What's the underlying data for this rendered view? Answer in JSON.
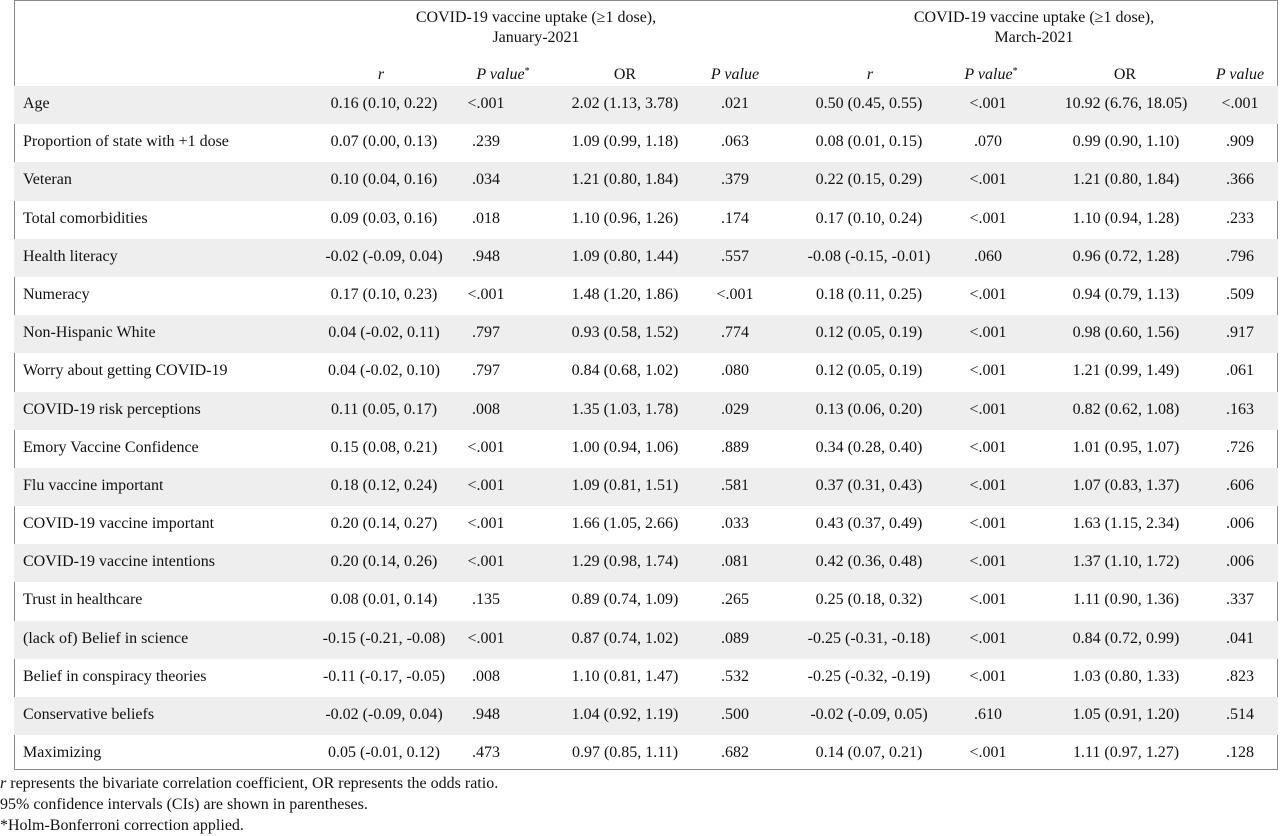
{
  "headers": {
    "group1_line1": "COVID-19 vaccine uptake (≥1 dose),",
    "group1_line2": "January-2021",
    "group2_line1": "COVID-19 vaccine uptake (≥1 dose),",
    "group2_line2": "March-2021",
    "r": "r",
    "p_value": "P value",
    "or": "OR",
    "asterisk": "*"
  },
  "rows": [
    {
      "label": "Age",
      "jan_r": "0.16 (0.10, 0.22)",
      "jan_p": "<.001",
      "jan_or": "2.02 (1.13, 3.78)",
      "jan_orp": ".021",
      "mar_r": "0.50 (0.45, 0.55)",
      "mar_p": "<.001",
      "mar_or": "10.92 (6.76, 18.05)",
      "mar_orp": "<.001"
    },
    {
      "label": "Proportion of state with +1 dose",
      "jan_r": "0.07 (0.00, 0.13)",
      "jan_p": ".239",
      "jan_or": "1.09 (0.99, 1.18)",
      "jan_orp": ".063",
      "mar_r": "0.08 (0.01, 0.15)",
      "mar_p": ".070",
      "mar_or": "0.99 (0.90, 1.10)",
      "mar_orp": ".909"
    },
    {
      "label": "Veteran",
      "jan_r": "0.10 (0.04, 0.16)",
      "jan_p": ".034",
      "jan_or": "1.21 (0.80, 1.84)",
      "jan_orp": ".379",
      "mar_r": "0.22 (0.15, 0.29)",
      "mar_p": "<.001",
      "mar_or": "1.21 (0.80, 1.84)",
      "mar_orp": ".366"
    },
    {
      "label": "Total comorbidities",
      "jan_r": "0.09 (0.03, 0.16)",
      "jan_p": ".018",
      "jan_or": "1.10 (0.96, 1.26)",
      "jan_orp": ".174",
      "mar_r": "0.17 (0.10, 0.24)",
      "mar_p": "<.001",
      "mar_or": "1.10 (0.94, 1.28)",
      "mar_orp": ".233"
    },
    {
      "label": "Health literacy",
      "jan_r": "-0.02 (-0.09, 0.04)",
      "jan_p": ".948",
      "jan_or": "1.09 (0.80, 1.44)",
      "jan_orp": ".557",
      "mar_r": "-0.08 (-0.15, -0.01)",
      "mar_p": ".060",
      "mar_or": "0.96 (0.72, 1.28)",
      "mar_orp": ".796"
    },
    {
      "label": "Numeracy",
      "jan_r": "0.17 (0.10, 0.23)",
      "jan_p": "<.001",
      "jan_or": "1.48 (1.20, 1.86)",
      "jan_orp": "<.001",
      "mar_r": "0.18 (0.11, 0.25)",
      "mar_p": "<.001",
      "mar_or": "0.94 (0.79, 1.13)",
      "mar_orp": ".509"
    },
    {
      "label": "Non-Hispanic White",
      "jan_r": "0.04 (-0.02, 0.11)",
      "jan_p": ".797",
      "jan_or": "0.93 (0.58, 1.52)",
      "jan_orp": ".774",
      "mar_r": "0.12 (0.05, 0.19)",
      "mar_p": "<.001",
      "mar_or": "0.98 (0.60, 1.56)",
      "mar_orp": ".917"
    },
    {
      "label": "Worry about getting COVID-19",
      "jan_r": "0.04 (-0.02, 0.10)",
      "jan_p": ".797",
      "jan_or": "0.84 (0.68, 1.02)",
      "jan_orp": ".080",
      "mar_r": "0.12 (0.05, 0.19)",
      "mar_p": "<.001",
      "mar_or": "1.21 (0.99, 1.49)",
      "mar_orp": ".061"
    },
    {
      "label": "COVID-19 risk perceptions",
      "jan_r": "0.11 (0.05, 0.17)",
      "jan_p": ".008",
      "jan_or": "1.35 (1.03, 1.78)",
      "jan_orp": ".029",
      "mar_r": "0.13 (0.06, 0.20)",
      "mar_p": "<.001",
      "mar_or": "0.82 (0.62, 1.08)",
      "mar_orp": ".163"
    },
    {
      "label": "Emory Vaccine Confidence",
      "jan_r": "0.15 (0.08, 0.21)",
      "jan_p": "<.001",
      "jan_or": "1.00 (0.94, 1.06)",
      "jan_orp": ".889",
      "mar_r": "0.34 (0.28, 0.40)",
      "mar_p": "<.001",
      "mar_or": "1.01 (0.95, 1.07)",
      "mar_orp": ".726"
    },
    {
      "label": "Flu vaccine important",
      "jan_r": "0.18 (0.12, 0.24)",
      "jan_p": "<.001",
      "jan_or": "1.09 (0.81, 1.51)",
      "jan_orp": ".581",
      "mar_r": "0.37 (0.31, 0.43)",
      "mar_p": "<.001",
      "mar_or": "1.07 (0.83, 1.37)",
      "mar_orp": ".606"
    },
    {
      "label": "COVID-19 vaccine important",
      "jan_r": "0.20 (0.14, 0.27)",
      "jan_p": "<.001",
      "jan_or": "1.66 (1.05, 2.66)",
      "jan_orp": ".033",
      "mar_r": "0.43 (0.37, 0.49)",
      "mar_p": "<.001",
      "mar_or": "1.63 (1.15, 2.34)",
      "mar_orp": ".006"
    },
    {
      "label": "COVID-19 vaccine intentions",
      "jan_r": "0.20 (0.14, 0.26)",
      "jan_p": "<.001",
      "jan_or": "1.29 (0.98, 1.74)",
      "jan_orp": ".081",
      "mar_r": "0.42 (0.36, 0.48)",
      "mar_p": "<.001",
      "mar_or": "1.37 (1.10, 1.72)",
      "mar_orp": ".006"
    },
    {
      "label": "Trust in healthcare",
      "jan_r": "0.08 (0.01, 0.14)",
      "jan_p": ".135",
      "jan_or": "0.89 (0.74, 1.09)",
      "jan_orp": ".265",
      "mar_r": "0.25 (0.18, 0.32)",
      "mar_p": "<.001",
      "mar_or": "1.11 (0.90, 1.36)",
      "mar_orp": ".337"
    },
    {
      "label": "(lack of) Belief in science",
      "jan_r": "-0.15 (-0.21, -0.08)",
      "jan_p": "<.001",
      "jan_or": "0.87 (0.74, 1.02)",
      "jan_orp": ".089",
      "mar_r": "-0.25 (-0.31, -0.18)",
      "mar_p": "<.001",
      "mar_or": "0.84 (0.72, 0.99)",
      "mar_orp": ".041"
    },
    {
      "label": "Belief in conspiracy theories",
      "jan_r": "-0.11 (-0.17, -0.05)",
      "jan_p": ".008",
      "jan_or": "1.10 (0.81, 1.47)",
      "jan_orp": ".532",
      "mar_r": "-0.25 (-0.32, -0.19)",
      "mar_p": "<.001",
      "mar_or": "1.03 (0.80, 1.33)",
      "mar_orp": ".823"
    },
    {
      "label": "Conservative beliefs",
      "jan_r": "-0.02 (-0.09, 0.04)",
      "jan_p": ".948",
      "jan_or": "1.04 (0.92, 1.19)",
      "jan_orp": ".500",
      "mar_r": "-0.02 (-0.09, 0.05)",
      "mar_p": ".610",
      "mar_or": "1.05 (0.91, 1.20)",
      "mar_orp": ".514"
    },
    {
      "label": "Maximizing",
      "jan_r": "0.05 (-0.01, 0.12)",
      "jan_p": ".473",
      "jan_or": "0.97 (0.85, 1.11)",
      "jan_orp": ".682",
      "mar_r": "0.14 (0.07, 0.21)",
      "mar_p": "<.001",
      "mar_or": "1.11 (0.97, 1.27)",
      "mar_orp": ".128"
    }
  ],
  "footnotes": {
    "line1_r": "r",
    "line1_rest": " represents the bivariate correlation coefficient, OR represents the odds ratio.",
    "line2": "95% confidence intervals (CIs) are shown in parentheses.",
    "line3": "*Holm-Bonferroni correction applied."
  }
}
